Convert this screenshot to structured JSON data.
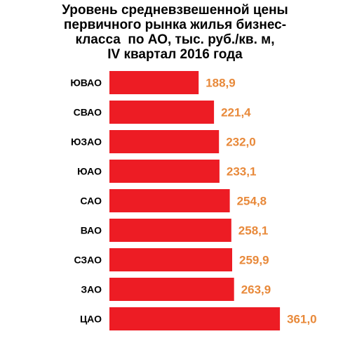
{
  "chart_data": {
    "type": "bar",
    "orientation": "horizontal",
    "title_lines": [
      "Уровень средневзвешенной цены",
      "первичного рынка жилья бизнес-",
      "класса  по АО, тыс. руб./кв. м,",
      "IV квартал 2016 года"
    ],
    "categories": [
      "ЮВАО",
      "СВАО",
      "ЮЗАО",
      "ЮАО",
      "САО",
      "ВАО",
      "СЗАО",
      "ЗАО",
      "ЦАО"
    ],
    "values": [
      188.9,
      221.4,
      232.0,
      233.1,
      254.8,
      258.1,
      259.9,
      263.9,
      361.0
    ],
    "value_labels": [
      "188,9",
      "221,4",
      "232,0",
      "233,1",
      "254,8",
      "258,1",
      "259,9",
      "263,9",
      "361,0"
    ],
    "xlim": [
      0,
      400
    ],
    "grid": false,
    "legend": "none",
    "bar_color": "#ed1c24",
    "value_label_color": "#e8893a"
  }
}
